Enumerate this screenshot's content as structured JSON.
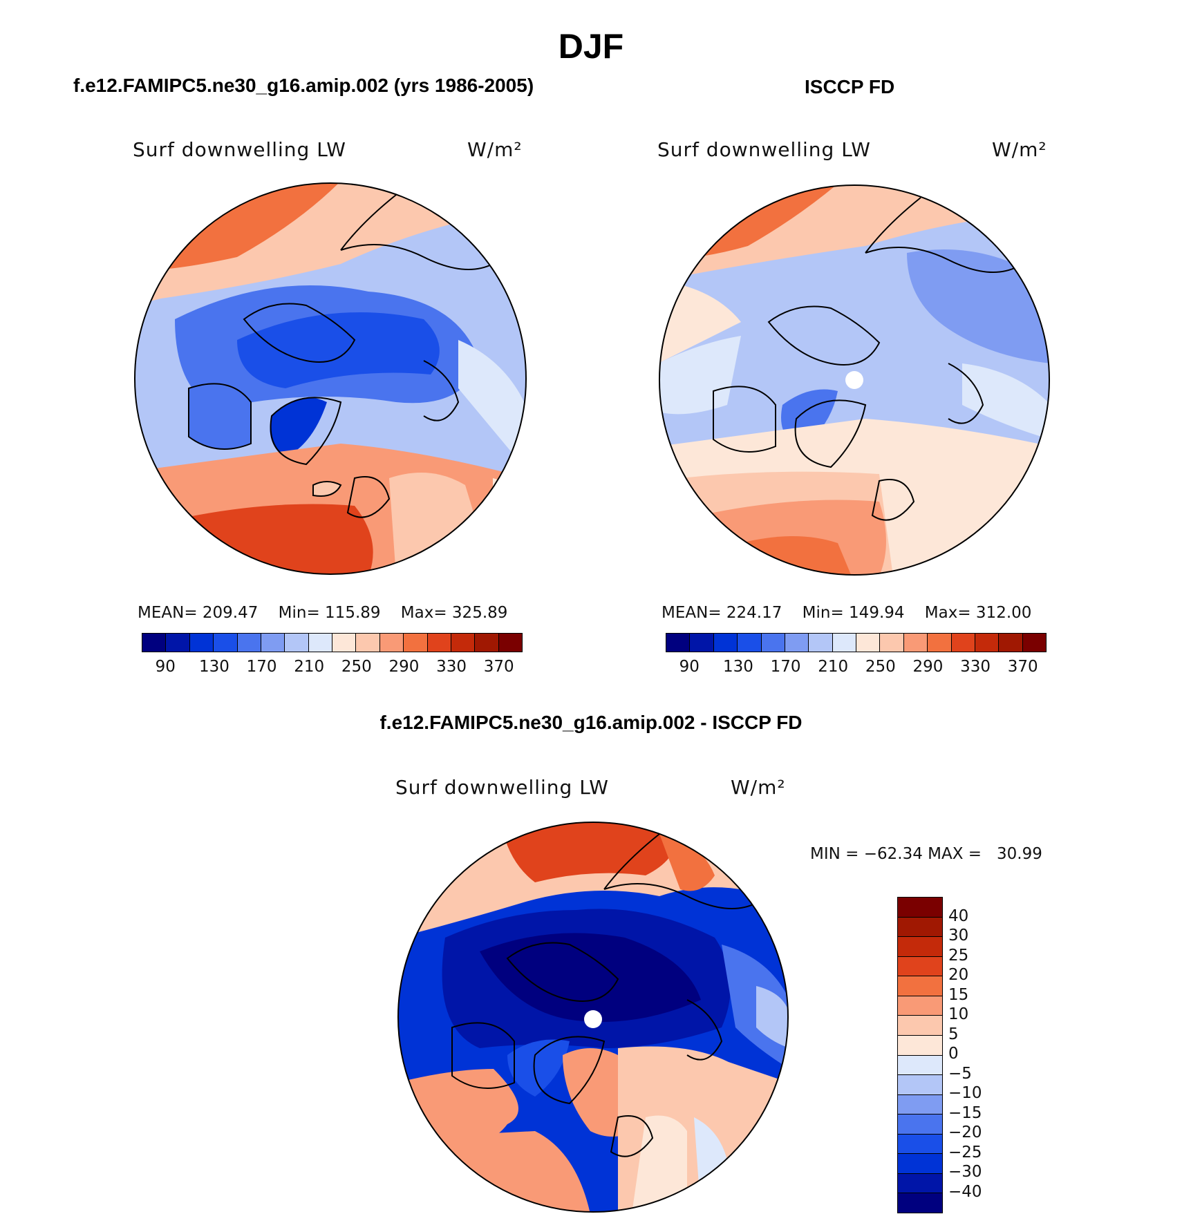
{
  "figure": {
    "title": "DJF"
  },
  "panels": [
    {
      "title": "f.e12.FAMIPC5.ne30_g16.amip.002 (yrs 1986-2005)",
      "variable": "Surf downwelling LW",
      "units": "W/m²",
      "stats": {
        "mean_label": "MEAN=",
        "mean": "209.47",
        "min_label": "Min=",
        "min": "115.89",
        "max_label": "Max=",
        "max": "325.89"
      },
      "colorbar_ticks": [
        "90",
        "130",
        "170",
        "210",
        "250",
        "290",
        "330",
        "370"
      ]
    },
    {
      "title": "ISCCP FD",
      "variable": "Surf downwelling LW",
      "units": "W/m²",
      "stats": {
        "mean_label": "MEAN=",
        "mean": "224.17",
        "min_label": "Min=",
        "min": "149.94",
        "max_label": "Max=",
        "max": "312.00"
      },
      "colorbar_ticks": [
        "90",
        "130",
        "170",
        "210",
        "250",
        "290",
        "330",
        "370"
      ]
    }
  ],
  "difference": {
    "title": "f.e12.FAMIPC5.ne30_g16.amip.002 - ISCCP FD",
    "variable": "Surf downwelling LW",
    "units": "W/m²",
    "minmax": "MIN = −62.34 MAX =   30.99",
    "colorbar_ticks": [
      "40",
      "30",
      "25",
      "20",
      "15",
      "10",
      "5",
      "0",
      "−5",
      "−10",
      "−15",
      "−20",
      "−25",
      "−30",
      "−40"
    ]
  },
  "colors": {
    "scale": [
      "#00007f",
      "#0015a8",
      "#0033d6",
      "#1a4fe8",
      "#4a74ee",
      "#7f9cf2",
      "#b3c6f7",
      "#dde8fb",
      "#fde7d8",
      "#fcc8ae",
      "#f99a76",
      "#f2713f",
      "#e0431c",
      "#c42a0a",
      "#a01802",
      "#7a0000"
    ]
  }
}
